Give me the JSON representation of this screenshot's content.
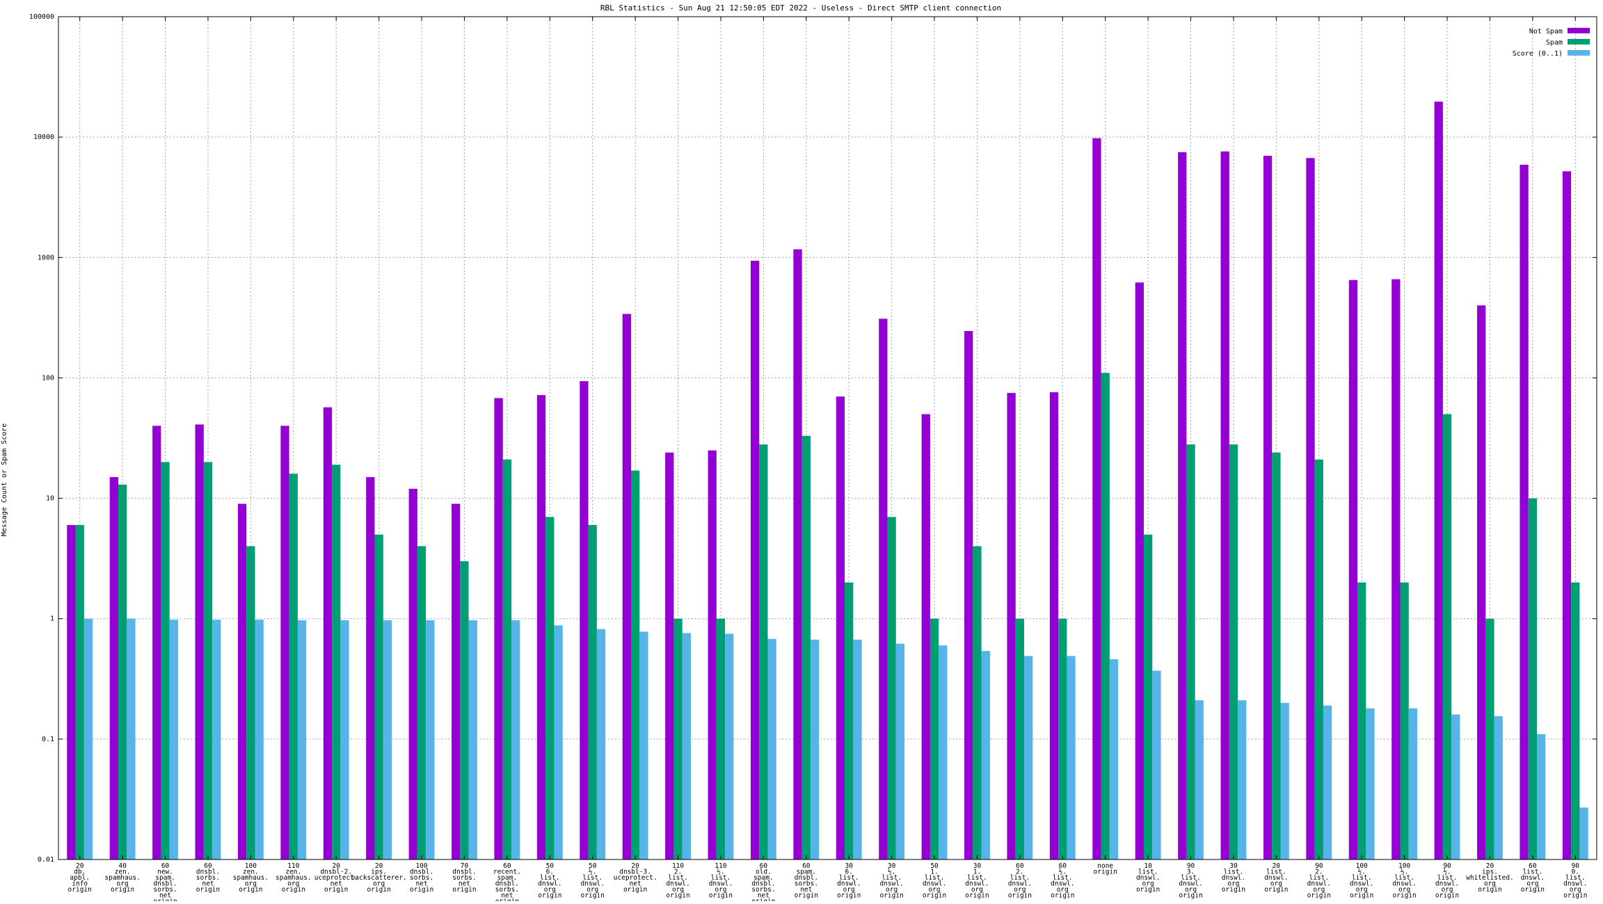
{
  "chart_data": {
    "type": "bar",
    "title": "RBL Statistics - Sun Aug 21 12:50:05 EDT 2022 - Useless - Direct SMTP client connection",
    "ylabel": "Message Count or Spam Score",
    "xlabel": "",
    "yscale": "log",
    "ylim": [
      0.01,
      100000
    ],
    "yticks": [
      "0.01",
      "0.1",
      "1",
      "10",
      "100",
      "1000",
      "10000",
      "100000"
    ],
    "grid": true,
    "legend_position": "top-right",
    "categories": [
      [
        "20",
        "db.",
        "apbl.",
        "info",
        "origin"
      ],
      [
        "40",
        "zen.",
        "spamhaus.",
        "org",
        "origin"
      ],
      [
        "60",
        "new.",
        "spam.",
        "dnsbl.",
        "sorbs.",
        "net",
        "origin"
      ],
      [
        "60",
        "dnsbl.",
        "sorbs.",
        "net",
        "origin"
      ],
      [
        "100",
        "zen.",
        "spamhaus.",
        "org",
        "origin"
      ],
      [
        "110",
        "zen.",
        "spamhaus.",
        "org",
        "origin"
      ],
      [
        "20",
        "dnsbl-2.",
        "uceprotect.",
        "net",
        "origin"
      ],
      [
        "20",
        "ips.",
        "backscatterer.",
        "org",
        "origin"
      ],
      [
        "100",
        "dnsbl.",
        "sorbs.",
        "net",
        "origin"
      ],
      [
        "70",
        "dnsbl.",
        "sorbs.",
        "net",
        "origin"
      ],
      [
        "60",
        "recent.",
        "spam.",
        "dnsbl.",
        "sorbs.",
        "net",
        "origin"
      ],
      [
        "50",
        "6.",
        "list.",
        "dnswl.",
        "org",
        "origin"
      ],
      [
        "50",
        "½.",
        "list.",
        "dnswl.",
        "org",
        "origin"
      ],
      [
        "20",
        "dnsbl-3.",
        "uceprotect.",
        "net",
        "origin"
      ],
      [
        "110",
        "2.",
        "list.",
        "dnswl.",
        "org",
        "origin"
      ],
      [
        "110",
        "½.",
        "list.",
        "dnswl.",
        "org",
        "origin"
      ],
      [
        "60",
        "old.",
        "spam.",
        "dnsbl.",
        "sorbs.",
        "net",
        "origin"
      ],
      [
        "60",
        "spam.",
        "dnsbl.",
        "sorbs.",
        "net",
        "origin"
      ],
      [
        "30",
        "6.",
        "list.",
        "dnswl.",
        "org",
        "origin"
      ],
      [
        "30",
        "½.",
        "list.",
        "dnswl.",
        "org",
        "origin"
      ],
      [
        "50",
        "1.",
        "list.",
        "dnswl.",
        "org",
        "origin"
      ],
      [
        "30",
        "1.",
        "list.",
        "dnswl.",
        "org",
        "origin"
      ],
      [
        "60",
        "2.",
        "list.",
        "dnswl.",
        "org",
        "origin"
      ],
      [
        "60",
        "½.",
        "list.",
        "dnswl.",
        "org",
        "origin"
      ],
      [
        "none",
        "origin"
      ],
      [
        "10",
        "list.",
        "dnswl.",
        "org",
        "origin"
      ],
      [
        "90",
        "3.",
        "list.",
        "dnswl.",
        "org",
        "origin"
      ],
      [
        "30",
        "list.",
        "dnswl.",
        "org",
        "origin"
      ],
      [
        "20",
        "list.",
        "dnswl.",
        "org",
        "origin"
      ],
      [
        "90",
        "2.",
        "list.",
        "dnswl.",
        "org",
        "origin"
      ],
      [
        "100",
        "½.",
        "list.",
        "dnswl.",
        "org",
        "origin"
      ],
      [
        "100",
        "½.",
        "list.",
        "dnswl.",
        "org",
        "origin"
      ],
      [
        "90",
        "½.",
        "list.",
        "dnswl.",
        "org",
        "origin"
      ],
      [
        "20",
        "ips.",
        "whitelisted.",
        "org",
        "origin"
      ],
      [
        "60",
        "list.",
        "dnswl.",
        "org",
        "origin"
      ],
      [
        "90",
        "0.",
        "list.",
        "dnswl.",
        "org",
        "origin"
      ]
    ],
    "series": [
      {
        "name": "Not Spam",
        "color": "#9400d3",
        "values": [
          6,
          15,
          40,
          41,
          9,
          40,
          57,
          15,
          12,
          9,
          68,
          72,
          94,
          340,
          24,
          25,
          940,
          1170,
          70,
          310,
          50,
          245,
          75,
          76,
          9800,
          620,
          7500,
          7600,
          7000,
          6700,
          650,
          660,
          19700,
          400,
          5900,
          5200
        ]
      },
      {
        "name": "Spam",
        "color": "#009e73",
        "values": [
          6,
          13,
          20,
          20,
          4,
          16,
          19,
          5,
          4,
          3,
          21,
          7,
          6,
          17,
          1,
          1,
          28,
          33,
          2,
          7,
          1,
          4,
          1,
          1,
          110,
          5,
          28,
          28,
          24,
          21,
          2,
          2,
          50,
          1,
          10,
          2
        ]
      },
      {
        "name": "Score (0..1)",
        "color": "#56b4e9",
        "values": [
          1,
          1,
          0.98,
          0.98,
          0.98,
          0.97,
          0.97,
          0.97,
          0.97,
          0.97,
          0.97,
          0.88,
          0.82,
          0.78,
          0.76,
          0.75,
          0.68,
          0.67,
          0.67,
          0.62,
          0.6,
          0.54,
          0.49,
          0.49,
          0.46,
          0.37,
          0.21,
          0.21,
          0.2,
          0.19,
          0.18,
          0.18,
          0.16,
          0.155,
          0.11,
          0.027
        ]
      }
    ]
  }
}
